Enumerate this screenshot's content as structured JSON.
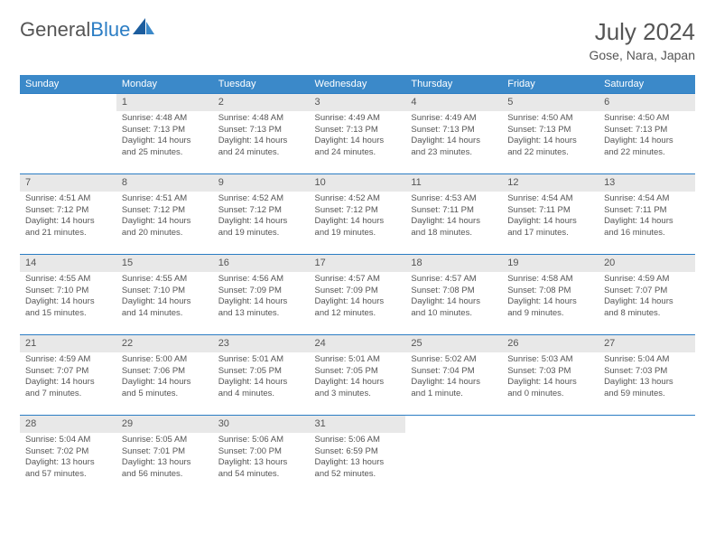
{
  "logo": {
    "word1": "General",
    "word2": "Blue"
  },
  "title": "July 2024",
  "location": "Gose, Nara, Japan",
  "colors": {
    "header_bg": "#3b89c9",
    "header_text": "#ffffff",
    "daynum_bg": "#e8e8e8",
    "border": "#2b7dc4",
    "body_text": "#555555",
    "logo_accent": "#2b7dc4"
  },
  "day_headers": [
    "Sunday",
    "Monday",
    "Tuesday",
    "Wednesday",
    "Thursday",
    "Friday",
    "Saturday"
  ],
  "weeks": [
    [
      null,
      {
        "n": "1",
        "sr": "4:48 AM",
        "ss": "7:13 PM",
        "dl": "14 hours and 25 minutes."
      },
      {
        "n": "2",
        "sr": "4:48 AM",
        "ss": "7:13 PM",
        "dl": "14 hours and 24 minutes."
      },
      {
        "n": "3",
        "sr": "4:49 AM",
        "ss": "7:13 PM",
        "dl": "14 hours and 24 minutes."
      },
      {
        "n": "4",
        "sr": "4:49 AM",
        "ss": "7:13 PM",
        "dl": "14 hours and 23 minutes."
      },
      {
        "n": "5",
        "sr": "4:50 AM",
        "ss": "7:13 PM",
        "dl": "14 hours and 22 minutes."
      },
      {
        "n": "6",
        "sr": "4:50 AM",
        "ss": "7:13 PM",
        "dl": "14 hours and 22 minutes."
      }
    ],
    [
      {
        "n": "7",
        "sr": "4:51 AM",
        "ss": "7:12 PM",
        "dl": "14 hours and 21 minutes."
      },
      {
        "n": "8",
        "sr": "4:51 AM",
        "ss": "7:12 PM",
        "dl": "14 hours and 20 minutes."
      },
      {
        "n": "9",
        "sr": "4:52 AM",
        "ss": "7:12 PM",
        "dl": "14 hours and 19 minutes."
      },
      {
        "n": "10",
        "sr": "4:52 AM",
        "ss": "7:12 PM",
        "dl": "14 hours and 19 minutes."
      },
      {
        "n": "11",
        "sr": "4:53 AM",
        "ss": "7:11 PM",
        "dl": "14 hours and 18 minutes."
      },
      {
        "n": "12",
        "sr": "4:54 AM",
        "ss": "7:11 PM",
        "dl": "14 hours and 17 minutes."
      },
      {
        "n": "13",
        "sr": "4:54 AM",
        "ss": "7:11 PM",
        "dl": "14 hours and 16 minutes."
      }
    ],
    [
      {
        "n": "14",
        "sr": "4:55 AM",
        "ss": "7:10 PM",
        "dl": "14 hours and 15 minutes."
      },
      {
        "n": "15",
        "sr": "4:55 AM",
        "ss": "7:10 PM",
        "dl": "14 hours and 14 minutes."
      },
      {
        "n": "16",
        "sr": "4:56 AM",
        "ss": "7:09 PM",
        "dl": "14 hours and 13 minutes."
      },
      {
        "n": "17",
        "sr": "4:57 AM",
        "ss": "7:09 PM",
        "dl": "14 hours and 12 minutes."
      },
      {
        "n": "18",
        "sr": "4:57 AM",
        "ss": "7:08 PM",
        "dl": "14 hours and 10 minutes."
      },
      {
        "n": "19",
        "sr": "4:58 AM",
        "ss": "7:08 PM",
        "dl": "14 hours and 9 minutes."
      },
      {
        "n": "20",
        "sr": "4:59 AM",
        "ss": "7:07 PM",
        "dl": "14 hours and 8 minutes."
      }
    ],
    [
      {
        "n": "21",
        "sr": "4:59 AM",
        "ss": "7:07 PM",
        "dl": "14 hours and 7 minutes."
      },
      {
        "n": "22",
        "sr": "5:00 AM",
        "ss": "7:06 PM",
        "dl": "14 hours and 5 minutes."
      },
      {
        "n": "23",
        "sr": "5:01 AM",
        "ss": "7:05 PM",
        "dl": "14 hours and 4 minutes."
      },
      {
        "n": "24",
        "sr": "5:01 AM",
        "ss": "7:05 PM",
        "dl": "14 hours and 3 minutes."
      },
      {
        "n": "25",
        "sr": "5:02 AM",
        "ss": "7:04 PM",
        "dl": "14 hours and 1 minute."
      },
      {
        "n": "26",
        "sr": "5:03 AM",
        "ss": "7:03 PM",
        "dl": "14 hours and 0 minutes."
      },
      {
        "n": "27",
        "sr": "5:04 AM",
        "ss": "7:03 PM",
        "dl": "13 hours and 59 minutes."
      }
    ],
    [
      {
        "n": "28",
        "sr": "5:04 AM",
        "ss": "7:02 PM",
        "dl": "13 hours and 57 minutes."
      },
      {
        "n": "29",
        "sr": "5:05 AM",
        "ss": "7:01 PM",
        "dl": "13 hours and 56 minutes."
      },
      {
        "n": "30",
        "sr": "5:06 AM",
        "ss": "7:00 PM",
        "dl": "13 hours and 54 minutes."
      },
      {
        "n": "31",
        "sr": "5:06 AM",
        "ss": "6:59 PM",
        "dl": "13 hours and 52 minutes."
      },
      null,
      null,
      null
    ]
  ],
  "labels": {
    "sunrise": "Sunrise:",
    "sunset": "Sunset:",
    "daylight": "Daylight:"
  }
}
